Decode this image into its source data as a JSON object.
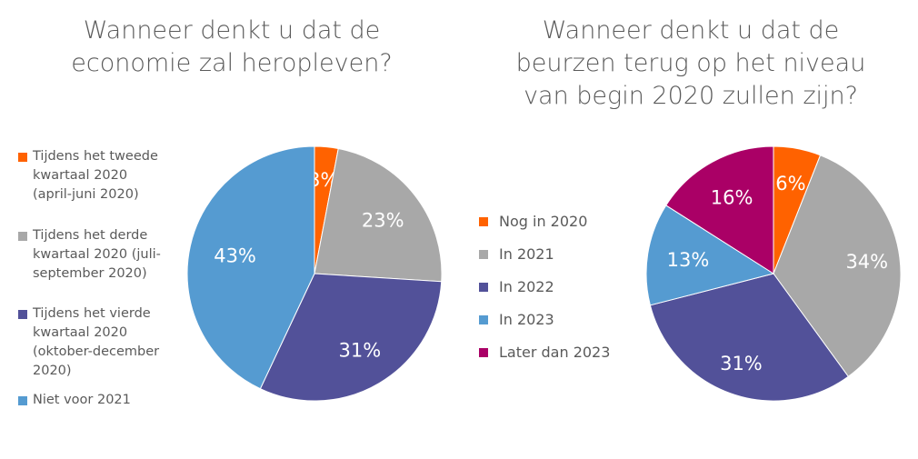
{
  "chart_data": [
    {
      "type": "pie",
      "title": "Wanneer denkt u dat de economie zal heropleven?",
      "categories": [
        "Tijdens het tweede kwartaal 2020 (april-juni 2020)",
        "Tijdens het derde kwartaal 2020 (juli-september 2020)",
        "Tijdens het vierde kwartaal 2020 (oktober-december 2020)",
        "Niet voor 2021"
      ],
      "legend_lines": [
        [
          "Tijdens het tweede",
          "kwartaal 2020",
          "(april-juni 2020)"
        ],
        [
          "Tijdens het derde",
          "kwartaal 2020 (juli-",
          "september 2020)"
        ],
        [
          "Tijdens het vierde",
          "kwartaal 2020",
          "(oktober-december",
          "2020)"
        ],
        [
          "Niet voor 2021"
        ]
      ],
      "values": [
        3,
        23,
        31,
        43
      ],
      "labels": [
        "3%",
        "23%",
        "31%",
        "43%"
      ],
      "colors": [
        "#ff6200",
        "#a8a8a8",
        "#525199",
        "#559bd1"
      ],
      "legend_position": "left"
    },
    {
      "type": "pie",
      "title": "Wanneer denkt u dat de beurzen terug op het niveau van begin 2020 zullen zijn?",
      "categories": [
        "Nog in 2020",
        "In 2021",
        "In 2022",
        "In 2023",
        "Later dan 2023"
      ],
      "values": [
        6,
        34,
        31,
        13,
        16
      ],
      "labels": [
        "6%",
        "34%",
        "31%",
        "13%",
        "16%"
      ],
      "colors": [
        "#ff6200",
        "#a8a8a8",
        "#525199",
        "#559bd1",
        "#aa0066"
      ],
      "legend_position": "left"
    }
  ],
  "titles": {
    "left": [
      "Wanneer denkt u dat de",
      "economie zal heropleven?"
    ],
    "right": [
      "Wanneer denkt u dat de",
      "beurzen terug op het niveau",
      "van begin 2020 zullen zijn?"
    ]
  }
}
